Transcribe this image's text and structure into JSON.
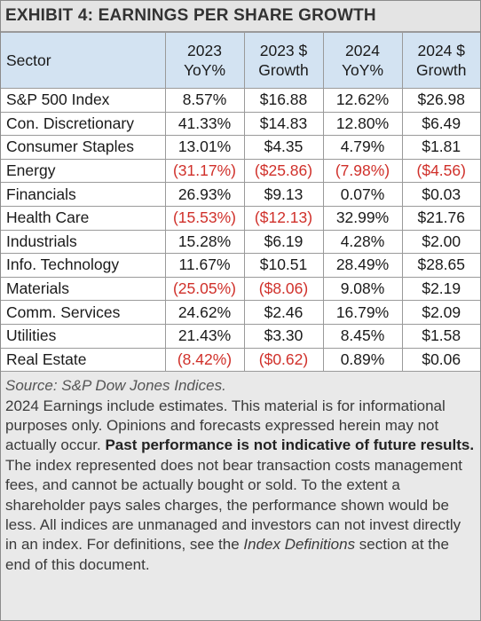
{
  "title": "EXHIBIT 4: EARNINGS PER SHARE GROWTH",
  "columns": {
    "sector": "Sector",
    "c1_line1": "2023",
    "c1_line2": "YoY%",
    "c2_line1": "2023 $",
    "c2_line2": "Growth",
    "c3_line1": "2024",
    "c3_line2": "YoY%",
    "c4_line1": "2024 $",
    "c4_line2": "Growth"
  },
  "rows": [
    {
      "sector": "S&P 500 Index",
      "yoy2023": "8.57%",
      "growth2023": "$16.88",
      "yoy2024": "12.62%",
      "growth2024": "$26.98"
    },
    {
      "sector": "Con. Discretionary",
      "yoy2023": "41.33%",
      "growth2023": "$14.83",
      "yoy2024": "12.80%",
      "growth2024": "$6.49"
    },
    {
      "sector": "Consumer Staples",
      "yoy2023": "13.01%",
      "growth2023": "$4.35",
      "yoy2024": "4.79%",
      "growth2024": "$1.81"
    },
    {
      "sector": "Energy",
      "yoy2023": "(31.17%)",
      "growth2023": "($25.86)",
      "yoy2024": "(7.98%)",
      "growth2024": "($4.56)"
    },
    {
      "sector": "Financials",
      "yoy2023": "26.93%",
      "growth2023": "$9.13",
      "yoy2024": "0.07%",
      "growth2024": "$0.03"
    },
    {
      "sector": "Health Care",
      "yoy2023": "(15.53%)",
      "growth2023": "($12.13)",
      "yoy2024": "32.99%",
      "growth2024": "$21.76"
    },
    {
      "sector": "Industrials",
      "yoy2023": "15.28%",
      "growth2023": "$6.19",
      "yoy2024": "4.28%",
      "growth2024": "$2.00"
    },
    {
      "sector": "Info. Technology",
      "yoy2023": "11.67%",
      "growth2023": "$10.51",
      "yoy2024": "28.49%",
      "growth2024": "$28.65"
    },
    {
      "sector": "Materials",
      "yoy2023": "(25.05%)",
      "growth2023": "($8.06)",
      "yoy2024": "9.08%",
      "growth2024": "$2.19"
    },
    {
      "sector": "Comm. Services",
      "yoy2023": "24.62%",
      "growth2023": "$2.46",
      "yoy2024": "16.79%",
      "growth2024": "$2.09"
    },
    {
      "sector": "Utilities",
      "yoy2023": "21.43%",
      "growth2023": "$3.30",
      "yoy2024": "8.45%",
      "growth2024": "$1.58"
    },
    {
      "sector": "Real Estate",
      "yoy2023": "(8.42%)",
      "growth2023": "($0.62)",
      "yoy2024": "0.89%",
      "growth2024": "$0.06"
    }
  ],
  "notes": {
    "source": "Source: S&P Dow Jones Indices.",
    "text1": "2024 Earnings include estimates. This material is for informational purposes only. Opinions and forecasts expressed herein may not actually occur. ",
    "bold": "Past performance is not indicative of future results.",
    "text2": " The index represented does not bear transaction costs management fees, and cannot be actually bought or sold. To the extent a shareholder pays sales charges, the performance shown would be less. All indices are unmanaged and investors can not invest directly in an index. For definitions, see the ",
    "italic": "Index Definitions",
    "text3": " section at the end of this document."
  },
  "colors": {
    "header_bg": "#d3e3f2",
    "negative": "#d0302a",
    "panel_bg": "#e9e9e9"
  }
}
